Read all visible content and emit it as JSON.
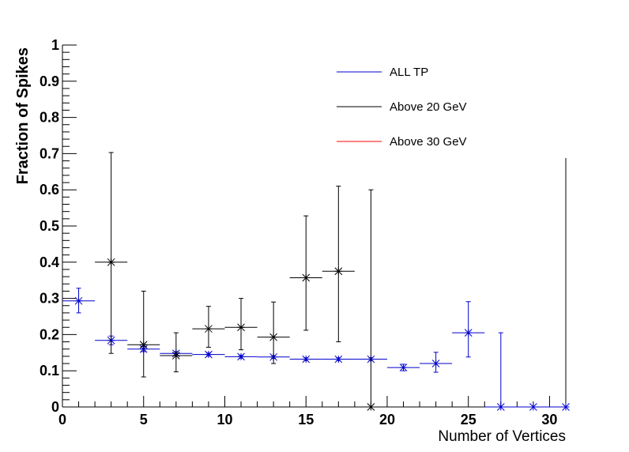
{
  "chart_data": {
    "type": "scatter",
    "title": "",
    "xlabel": "Number of Vertices",
    "ylabel": "Fraction of Spikes",
    "xlim": [
      0,
      31
    ],
    "ylim": [
      0,
      1
    ],
    "x_ticks": [
      "0",
      "5",
      "10",
      "15",
      "20",
      "25",
      "30"
    ],
    "y_ticks": [
      "0",
      "0.1",
      "0.2",
      "0.3",
      "0.4",
      "0.5",
      "0.6",
      "0.7",
      "0.8",
      "0.9",
      "1"
    ],
    "grid": false,
    "legend_position": "top-right",
    "series": [
      {
        "name": "ALL TP",
        "color": "#0000cc",
        "marker": "x-star",
        "points": [
          {
            "x": 1,
            "xlo": 0,
            "xhi": 2,
            "y": 0.293,
            "ylo": 0.26,
            "yhi": 0.328
          },
          {
            "x": 3,
            "xlo": 2,
            "xhi": 4,
            "y": 0.184,
            "ylo": 0.172,
            "yhi": 0.196
          },
          {
            "x": 5,
            "xlo": 4,
            "xhi": 6,
            "y": 0.16,
            "ylo": 0.153,
            "yhi": 0.167
          },
          {
            "x": 7,
            "xlo": 6,
            "xhi": 8,
            "y": 0.148,
            "ylo": 0.143,
            "yhi": 0.153
          },
          {
            "x": 9,
            "xlo": 8,
            "xhi": 10,
            "y": 0.145,
            "ylo": 0.141,
            "yhi": 0.149
          },
          {
            "x": 11,
            "xlo": 10,
            "xhi": 12,
            "y": 0.139,
            "ylo": 0.135,
            "yhi": 0.143
          },
          {
            "x": 13,
            "xlo": 12,
            "xhi": 14,
            "y": 0.138,
            "ylo": 0.134,
            "yhi": 0.142
          },
          {
            "x": 15,
            "xlo": 14,
            "xhi": 16,
            "y": 0.132,
            "ylo": 0.128,
            "yhi": 0.136
          },
          {
            "x": 17,
            "xlo": 16,
            "xhi": 18,
            "y": 0.132,
            "ylo": 0.128,
            "yhi": 0.136
          },
          {
            "x": 19,
            "xlo": 18,
            "xhi": 20,
            "y": 0.132,
            "ylo": 0.128,
            "yhi": 0.136
          },
          {
            "x": 21,
            "xlo": 20,
            "xhi": 22,
            "y": 0.109,
            "ylo": 0.1,
            "yhi": 0.118
          },
          {
            "x": 23,
            "xlo": 22,
            "xhi": 24,
            "y": 0.12,
            "ylo": 0.096,
            "yhi": 0.151
          },
          {
            "x": 25,
            "xlo": 24,
            "xhi": 26,
            "y": 0.205,
            "ylo": 0.138,
            "yhi": 0.291
          },
          {
            "x": 27,
            "xlo": 26,
            "xhi": 28,
            "y": 0.0,
            "ylo": 0.0,
            "yhi": 0.205
          },
          {
            "x": 29,
            "xlo": 28,
            "xhi": 30,
            "y": 0.0,
            "ylo": 0.0,
            "yhi": 0.0
          },
          {
            "x": 31,
            "xlo": 30,
            "xhi": 31,
            "y": 0.0,
            "ylo": 0.0,
            "yhi": 0.0
          }
        ]
      },
      {
        "name": "Above 20 GeV",
        "color": "#000000",
        "marker": "x-star",
        "points": [
          {
            "x": 3,
            "xlo": 2,
            "xhi": 4,
            "y": 0.4,
            "ylo": 0.148,
            "yhi": 0.703
          },
          {
            "x": 5,
            "xlo": 4,
            "xhi": 6,
            "y": 0.172,
            "ylo": 0.083,
            "yhi": 0.32
          },
          {
            "x": 7,
            "xlo": 6,
            "xhi": 8,
            "y": 0.142,
            "ylo": 0.097,
            "yhi": 0.205
          },
          {
            "x": 9,
            "xlo": 8,
            "xhi": 10,
            "y": 0.216,
            "ylo": 0.165,
            "yhi": 0.278
          },
          {
            "x": 11,
            "xlo": 10,
            "xhi": 12,
            "y": 0.22,
            "ylo": 0.158,
            "yhi": 0.3
          },
          {
            "x": 13,
            "xlo": 12,
            "xhi": 14,
            "y": 0.193,
            "ylo": 0.12,
            "yhi": 0.29
          },
          {
            "x": 15,
            "xlo": 14,
            "xhi": 16,
            "y": 0.357,
            "ylo": 0.212,
            "yhi": 0.528
          },
          {
            "x": 17,
            "xlo": 16,
            "xhi": 18,
            "y": 0.375,
            "ylo": 0.18,
            "yhi": 0.61
          },
          {
            "x": 19,
            "xlo": 18,
            "xhi": 20,
            "y": 0.0,
            "ylo": 0.0,
            "yhi": 0.6
          }
        ]
      },
      {
        "name": "Above 30 GeV",
        "color": "#ff0000",
        "marker": "x-star",
        "points": []
      }
    ]
  }
}
